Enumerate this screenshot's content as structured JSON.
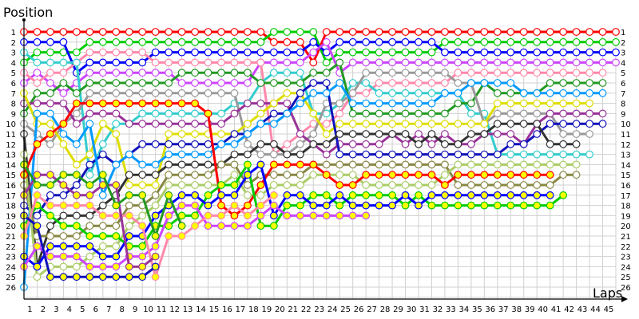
{
  "chart_data": {
    "type": "line",
    "title": "",
    "ylabel": "Position",
    "xlabel": "Laps",
    "x_ticks": [
      1,
      2,
      3,
      4,
      5,
      6,
      7,
      8,
      9,
      10,
      11,
      12,
      13,
      14,
      15,
      16,
      17,
      18,
      19,
      20,
      21,
      22,
      23,
      24,
      25,
      26,
      27,
      28,
      29,
      30,
      31,
      32,
      33,
      34,
      35,
      36,
      37,
      38,
      39,
      40,
      41,
      42,
      43,
      44,
      45
    ],
    "y_ticks": [
      1,
      2,
      3,
      4,
      5,
      6,
      7,
      8,
      9,
      10,
      11,
      12,
      13,
      14,
      15,
      16,
      17,
      18,
      19,
      20,
      21,
      22,
      23,
      24,
      25,
      26
    ],
    "xlim": [
      0,
      45
    ],
    "ylim": [
      1,
      26
    ],
    "y_inverted": true,
    "grid": true,
    "series": [
      {
        "color": "#ff0000",
        "marker": "#ffffff",
        "positions": [
          1,
          1,
          1,
          1,
          1,
          1,
          1,
          1,
          1,
          1,
          1,
          1,
          1,
          1,
          1,
          1,
          1,
          1,
          1,
          2,
          2,
          2,
          4,
          1,
          1,
          1,
          1,
          1,
          1,
          1,
          1,
          1,
          1,
          1,
          1,
          1,
          1,
          1,
          1,
          1,
          1,
          1,
          1,
          1,
          1,
          1
        ]
      },
      {
        "color": "#00cc00",
        "marker": "#ffffff",
        "positions": [
          4,
          3,
          3,
          3,
          3,
          2,
          2,
          2,
          2,
          2,
          2,
          2,
          2,
          2,
          2,
          2,
          2,
          2,
          2,
          1,
          1,
          1,
          1,
          4,
          3,
          3,
          3,
          3,
          3,
          3,
          3,
          3,
          2,
          2,
          2,
          2,
          2,
          2,
          2,
          2,
          2,
          2,
          2,
          2,
          2,
          2
        ]
      },
      {
        "color": "#0000ff",
        "marker": "#ffffff",
        "positions": [
          2,
          2,
          2,
          2,
          5,
          4,
          4,
          4,
          4,
          4,
          3,
          3,
          3,
          3,
          3,
          3,
          3,
          3,
          3,
          3,
          3,
          3,
          2,
          3,
          2,
          2,
          2,
          2,
          2,
          2,
          2,
          2,
          3,
          3,
          3,
          3,
          3,
          3,
          3,
          3,
          3,
          3,
          3,
          3,
          3,
          3
        ]
      },
      {
        "color": "#cc44ff",
        "marker": "#ffffff",
        "positions": [
          6,
          5,
          6,
          7,
          6,
          5,
          5,
          5,
          5,
          5,
          5,
          5,
          6,
          6,
          6,
          6,
          6,
          6,
          4,
          4,
          4,
          4,
          3,
          2,
          5,
          4,
          4,
          4,
          4,
          4,
          4,
          4,
          4,
          4,
          4,
          4,
          4,
          4,
          4,
          4,
          4,
          4,
          4,
          4,
          4,
          4
        ]
      },
      {
        "color": "#ff88aa",
        "marker": "#ffffff",
        "positions": [
          5,
          6,
          5,
          5,
          4,
          3,
          3,
          3,
          3,
          3,
          4,
          4,
          4,
          4,
          4,
          4,
          4,
          4,
          4,
          13,
          12,
          11,
          10,
          10,
          9,
          7,
          7,
          6,
          6,
          6,
          6,
          6,
          6,
          5,
          5,
          5,
          5,
          5,
          5,
          5,
          5,
          5,
          5,
          5,
          5,
          null
        ]
      },
      {
        "color": "#33cccc",
        "marker": "#ffffff",
        "positions": [
          3,
          4,
          4,
          4,
          4,
          15,
          12,
          10,
          10,
          9,
          9,
          9,
          9,
          9,
          9,
          9,
          8,
          8,
          6,
          5,
          5,
          5,
          9,
          9,
          8,
          6,
          6,
          7,
          7,
          7,
          7,
          7,
          7,
          7,
          9,
          9,
          13,
          13,
          13,
          13,
          13,
          13,
          13,
          13,
          null,
          null
        ]
      },
      {
        "color": "#229922",
        "marker": "#ffffff",
        "positions": [
          9,
          7,
          7,
          6,
          7,
          6,
          6,
          6,
          6,
          6,
          6,
          6,
          5,
          5,
          5,
          5,
          5,
          5,
          6,
          6,
          6,
          6,
          5,
          5,
          4,
          9,
          9,
          9,
          9,
          9,
          9,
          9,
          9,
          8,
          8,
          6,
          7,
          7,
          7,
          7,
          6,
          6,
          6,
          6,
          6,
          null
        ]
      },
      {
        "color": "#999999",
        "marker": "#ffffff",
        "positions": [
          10,
          11,
          12,
          10,
          9,
          7,
          7,
          7,
          7,
          7,
          7,
          7,
          7,
          7,
          7,
          7,
          7,
          12,
          13,
          13,
          13,
          12,
          11,
          8,
          8,
          7,
          5,
          5,
          5,
          5,
          5,
          5,
          5,
          6,
          6,
          10,
          9,
          9,
          9,
          9,
          9,
          11,
          11,
          11,
          null,
          null
        ]
      },
      {
        "color": "#993399",
        "marker": "#ffffff",
        "positions": [
          8,
          8,
          8,
          8,
          10,
          9,
          9,
          9,
          10,
          10,
          10,
          10,
          10,
          10,
          10,
          10,
          9,
          8,
          8,
          8,
          8,
          11,
          12,
          13,
          12,
          12,
          12,
          12,
          11,
          12,
          11,
          12,
          11,
          12,
          12,
          11,
          11,
          11,
          12,
          10,
          9,
          9,
          9,
          9,
          9,
          null
        ]
      },
      {
        "color": "#dddd00",
        "marker": "#ffffff",
        "positions": [
          7,
          10,
          10,
          12,
          14,
          13,
          10,
          11,
          16,
          16,
          16,
          11,
          11,
          11,
          11,
          11,
          11,
          10,
          9,
          8,
          7,
          7,
          9,
          11,
          10,
          10,
          10,
          10,
          10,
          10,
          10,
          10,
          10,
          10,
          10,
          10,
          8,
          8,
          8,
          8,
          8,
          8,
          8,
          8,
          null,
          null
        ]
      },
      {
        "color": "#1111bb",
        "marker": "#ffffff",
        "positions": [
          18,
          19,
          17,
          17,
          16,
          14,
          13,
          14,
          13,
          12,
          12,
          12,
          12,
          12,
          12,
          12,
          11,
          11,
          10,
          9,
          9,
          7,
          6,
          6,
          13,
          13,
          13,
          13,
          13,
          13,
          13,
          13,
          13,
          13,
          13,
          13,
          13,
          12,
          12,
          11,
          10,
          10,
          10,
          10,
          10,
          null
        ]
      },
      {
        "color": "#0099ff",
        "marker": "#ffffff",
        "positions": [
          26,
          9,
          9,
          11,
          12,
          10,
          17,
          14,
          13,
          14,
          14,
          13,
          13,
          13,
          13,
          12,
          12,
          11,
          10,
          10,
          9,
          8,
          7,
          7,
          6,
          8,
          8,
          8,
          8,
          8,
          8,
          8,
          7,
          7,
          6,
          6,
          6,
          6,
          7,
          7,
          7,
          7,
          7,
          7,
          7,
          null
        ]
      },
      {
        "color": "#333333",
        "marker": "#ffffff",
        "positions": [
          11,
          24,
          20,
          19,
          19,
          19,
          18,
          17,
          15,
          15,
          15,
          14,
          14,
          14,
          14,
          14,
          13,
          13,
          12,
          12,
          13,
          13,
          12,
          12,
          11,
          11,
          11,
          11,
          11,
          11,
          12,
          11,
          12,
          12,
          11,
          11,
          10,
          10,
          10,
          10,
          12,
          12,
          12,
          null,
          null,
          null
        ]
      },
      {
        "color": "#888844",
        "marker": "#ffffff",
        "positions": [
          16,
          21,
          21,
          21,
          21,
          20,
          20,
          20,
          18,
          18,
          17,
          15,
          15,
          15,
          15,
          14,
          14,
          16,
          15,
          15,
          15,
          15,
          14,
          14,
          14,
          14,
          14,
          14,
          14,
          14,
          14,
          14,
          14,
          16,
          16,
          16,
          16,
          16,
          16,
          16,
          16,
          15,
          15,
          null,
          null,
          null
        ]
      },
      {
        "color": "#aacc66",
        "marker": "#ffffff",
        "positions": [
          13,
          25,
          24,
          24,
          24,
          23,
          22,
          22,
          20,
          19,
          18,
          16,
          16,
          16,
          16,
          16,
          15,
          17,
          17,
          16,
          16,
          16,
          15,
          15,
          15,
          15,
          16,
          16,
          16,
          16,
          16,
          16,
          15,
          14,
          14,
          14,
          14,
          14,
          14,
          14,
          14,
          14,
          14,
          null,
          null,
          null
        ]
      },
      {
        "color": "#ff0000",
        "marker": "#ffff00",
        "positions": [
          15,
          12,
          11,
          10,
          8,
          8,
          8,
          8,
          8,
          8,
          8,
          8,
          8,
          8,
          9,
          18,
          19,
          18,
          16,
          14,
          14,
          14,
          14,
          15,
          16,
          16,
          15,
          15,
          15,
          15,
          15,
          15,
          16,
          15,
          15,
          15,
          15,
          15,
          15,
          15,
          15,
          null,
          null,
          null,
          null,
          null
        ]
      },
      {
        "color": "#00cc00",
        "marker": "#ffff00",
        "positions": [
          20,
          18,
          19,
          20,
          20,
          21,
          21,
          21,
          22,
          22,
          20,
          20,
          19,
          19,
          17,
          16,
          16,
          14,
          20,
          20,
          18,
          18,
          17,
          17,
          18,
          17,
          17,
          17,
          17,
          18,
          17,
          18,
          18,
          18,
          18,
          18,
          18,
          18,
          18,
          18,
          18,
          17,
          null,
          null,
          null,
          null
        ]
      },
      {
        "color": "#0000ff",
        "marker": "#ffff00",
        "positions": [
          23,
          24,
          22,
          22,
          22,
          22,
          23,
          23,
          21,
          21,
          19,
          18,
          17,
          17,
          18,
          17,
          17,
          15,
          14,
          19,
          17,
          17,
          18,
          18,
          17,
          18,
          18,
          18,
          18,
          17,
          18,
          17,
          17,
          17,
          17,
          17,
          17,
          17,
          17,
          17,
          17,
          null,
          null,
          null,
          null,
          null
        ]
      },
      {
        "color": "#cc44ff",
        "marker": "#ffff00",
        "positions": [
          24,
          22,
          23,
          23,
          23,
          24,
          24,
          24,
          23,
          23,
          22,
          19,
          18,
          18,
          20,
          20,
          20,
          20,
          19,
          18,
          19,
          19,
          19,
          19,
          19,
          19,
          19,
          null,
          null,
          null,
          null,
          null,
          null,
          null,
          null,
          null,
          null,
          null,
          null,
          null,
          null,
          null,
          null,
          null,
          null,
          null
        ]
      },
      {
        "color": "#ff88aa",
        "marker": "#ffff00",
        "positions": [
          21,
          17,
          18,
          18,
          18,
          18,
          19,
          19,
          19,
          20,
          25,
          21,
          21,
          20,
          19,
          19,
          18,
          19,
          18,
          17,
          null,
          null,
          null,
          null,
          null,
          null,
          null,
          null,
          null,
          null,
          null,
          null,
          null,
          null,
          null,
          null,
          null,
          null,
          null,
          null,
          null,
          null,
          null,
          null,
          null,
          null
        ]
      },
      {
        "color": "#1111bb",
        "marker": "#ffff00",
        "positions": [
          19,
          20,
          25,
          25,
          25,
          25,
          25,
          25,
          25,
          25,
          24,
          null,
          null,
          null,
          null,
          null,
          null,
          null,
          null,
          null,
          null,
          null,
          null,
          null,
          null,
          null,
          null,
          null,
          null,
          null,
          null,
          null,
          null,
          null,
          null,
          null,
          null,
          null,
          null,
          null,
          null,
          null,
          null,
          null,
          null,
          null
        ]
      },
      {
        "color": "#993399",
        "marker": "#ffff00",
        "positions": [
          17,
          15,
          15,
          16,
          17,
          17,
          16,
          16,
          24,
          24,
          23,
          null,
          null,
          null,
          null,
          null,
          null,
          null,
          null,
          null,
          null,
          null,
          null,
          null,
          null,
          null,
          null,
          null,
          null,
          null,
          null,
          null,
          null,
          null,
          null,
          null,
          null,
          null,
          null,
          null,
          null,
          null,
          null,
          null,
          null,
          null
        ]
      },
      {
        "color": "#229922",
        "marker": "#ffff00",
        "positions": [
          14,
          16,
          16,
          15,
          15,
          16,
          15,
          18,
          17,
          17,
          21,
          17,
          20,
          null,
          null,
          null,
          null,
          null,
          null,
          null,
          null,
          null,
          null,
          null,
          null,
          null,
          null,
          null,
          null,
          null,
          null,
          null,
          null,
          null,
          null,
          null,
          null,
          null,
          null,
          null,
          null,
          null,
          null,
          null,
          null,
          null
        ]
      }
    ]
  }
}
